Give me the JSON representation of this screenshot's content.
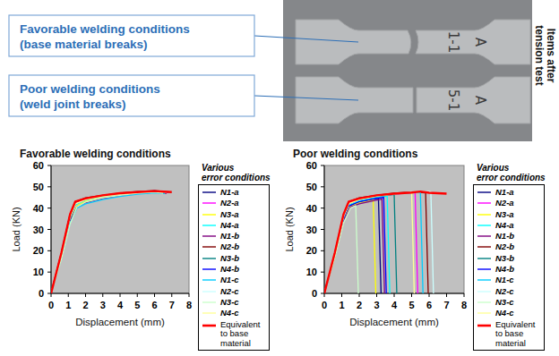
{
  "photo": {
    "callouts": [
      {
        "lines": [
          "Favorable welding conditions",
          "(base material breaks)"
        ]
      },
      {
        "lines": [
          "Poor welding conditions",
          "(weld joint breaks)"
        ]
      }
    ],
    "side_label": [
      "Items after",
      "tension test"
    ],
    "specimens": [
      {
        "marks": [
          "1-1",
          "A"
        ]
      },
      {
        "marks": [
          "5-1",
          "A"
        ]
      }
    ]
  },
  "chart_data": [
    {
      "type": "line",
      "title": "Favorable welding conditions",
      "x_label": "Displacement (mm)",
      "y_label": "Load (KN)",
      "legend_title": [
        "Various",
        "error conditions"
      ],
      "xlim": [
        0,
        8
      ],
      "xticks": [
        0,
        1,
        2,
        3,
        4,
        5,
        6,
        7,
        8
      ],
      "ylim": [
        0,
        60
      ],
      "yticks": [
        0,
        10,
        20,
        30,
        40,
        50,
        60
      ],
      "grid": false,
      "legend": "right",
      "series": [
        {
          "name": "N1-a",
          "color": "#000080",
          "x": [
            0,
            0.6,
            1.1,
            1.4,
            2,
            3,
            4,
            5,
            6,
            6.6
          ],
          "values": [
            0,
            19,
            37,
            42.5,
            44,
            45.5,
            46.5,
            47.3,
            47.8,
            47.2
          ]
        },
        {
          "name": "N2-a",
          "color": "#FF00FF",
          "x": [
            0,
            0.6,
            1.1,
            1.4,
            2,
            3,
            4,
            5,
            6,
            6.8
          ],
          "values": [
            0,
            18,
            36,
            42,
            44.2,
            45.8,
            46.8,
            47.6,
            48,
            47.4
          ]
        },
        {
          "name": "N3-a",
          "color": "#FFFF00",
          "x": [
            0,
            0.6,
            1.1,
            1.5,
            2,
            3,
            4,
            5,
            6,
            6.5
          ],
          "values": [
            0,
            17,
            34,
            41,
            43.5,
            45.2,
            46.3,
            47.2,
            47.6,
            47
          ]
        },
        {
          "name": "N4-a",
          "color": "#00FFFF",
          "x": [
            0,
            0.6,
            1.1,
            1.4,
            2,
            3,
            4,
            5,
            6,
            7
          ],
          "values": [
            0,
            18,
            35,
            41.5,
            43.8,
            45.4,
            46.6,
            47.4,
            47.9,
            47.5
          ]
        },
        {
          "name": "N1-b",
          "color": "#800080",
          "x": [
            0,
            0.6,
            1.1,
            1.5,
            2,
            3,
            4,
            5,
            6,
            6.7
          ],
          "values": [
            0,
            17,
            34,
            40.5,
            42.5,
            44.5,
            45.8,
            46.8,
            47.4,
            47
          ]
        },
        {
          "name": "N2-b",
          "color": "#800000",
          "x": [
            0,
            0.6,
            1.1,
            1.4,
            2,
            3,
            4,
            5,
            6,
            6.9
          ],
          "values": [
            0,
            19,
            37,
            43,
            44.8,
            46,
            47,
            47.8,
            48.2,
            47.6
          ]
        },
        {
          "name": "N3-b",
          "color": "#008080",
          "x": [
            0,
            0.6,
            1.1,
            1.4,
            2,
            3,
            4,
            5,
            6,
            6.4
          ],
          "values": [
            0,
            18,
            35.5,
            42,
            44,
            45.6,
            46.7,
            47.4,
            47.8,
            47.3
          ]
        },
        {
          "name": "N4-b",
          "color": "#0000FF",
          "x": [
            0,
            0.6,
            1.1,
            1.4,
            2,
            3,
            4,
            5,
            6,
            6.8
          ],
          "values": [
            0,
            18.5,
            36,
            42.3,
            44.2,
            45.7,
            46.6,
            47.4,
            48.1,
            47.5
          ]
        },
        {
          "name": "N1-c",
          "color": "#00CCFF",
          "x": [
            0,
            0.6,
            1.1,
            1.5,
            2,
            3,
            4,
            5,
            6,
            6.6
          ],
          "values": [
            0,
            16.5,
            33,
            40,
            42,
            44,
            45.5,
            46.5,
            47.2,
            46.8
          ]
        },
        {
          "name": "N2-c",
          "color": "#CCFFFF",
          "x": [
            0,
            0.6,
            1.1,
            1.4,
            2,
            3,
            4,
            5,
            6,
            6.9
          ],
          "values": [
            0,
            18,
            36,
            42,
            44,
            45.6,
            46.6,
            47.6,
            48,
            47.6
          ]
        },
        {
          "name": "N3-c",
          "color": "#CCFFCC",
          "x": [
            0,
            0.6,
            1.1,
            1.5,
            2,
            3,
            4,
            5,
            6,
            6.5
          ],
          "values": [
            0,
            16,
            32.5,
            40.5,
            42.8,
            44.8,
            46,
            47,
            47.5,
            47
          ]
        },
        {
          "name": "N4-c",
          "color": "#FFFF99",
          "x": [
            0,
            0.6,
            1.1,
            1.4,
            2,
            3,
            4,
            5,
            6,
            6.7
          ],
          "values": [
            0,
            18,
            35.8,
            42,
            44,
            45.5,
            46.5,
            47.3,
            47.9,
            47.4
          ]
        },
        {
          "name": "Equivalent to base material",
          "color": "#FF0000",
          "x": [
            0,
            0.6,
            1.1,
            1.4,
            2,
            3,
            4,
            5,
            6,
            7
          ],
          "values": [
            0,
            19,
            37,
            43,
            44.5,
            46,
            47,
            47.5,
            48,
            47.5
          ]
        }
      ]
    },
    {
      "type": "line",
      "title": "Poor welding conditions",
      "x_label": "Displacement (mm)",
      "y_label": "Load (KN)",
      "legend_title": [
        "Various",
        "error conditions"
      ],
      "xlim": [
        0,
        8
      ],
      "xticks": [
        0,
        1,
        2,
        3,
        4,
        5,
        6,
        7,
        8
      ],
      "ylim": [
        0,
        60
      ],
      "yticks": [
        0,
        10,
        20,
        30,
        40,
        50,
        60
      ],
      "grid": false,
      "legend": "right",
      "series": [
        {
          "name": "N1-a",
          "color": "#000080",
          "x": [
            0,
            0.6,
            1.1,
            1.4,
            2,
            3,
            3.1,
            3.25
          ],
          "values": [
            0,
            18,
            35,
            41,
            43,
            44.5,
            44.6,
            0
          ]
        },
        {
          "name": "N2-a",
          "color": "#FF00FF",
          "x": [
            0,
            0.6,
            1.1,
            1.4,
            2,
            3,
            4,
            5,
            5.2,
            5.35
          ],
          "values": [
            0,
            18.5,
            36,
            42,
            44,
            45.5,
            46.5,
            47.3,
            47.4,
            0
          ]
        },
        {
          "name": "N3-a",
          "color": "#FFFF00",
          "x": [
            0,
            0.6,
            1.1,
            1.4,
            2,
            2.8,
            2.95
          ],
          "values": [
            0,
            17,
            34,
            40.5,
            42.5,
            43.8,
            0
          ]
        },
        {
          "name": "N4-a",
          "color": "#00FFFF",
          "x": [
            0,
            0.6,
            1.1,
            1.4,
            2,
            3,
            3.6,
            3.75
          ],
          "values": [
            0,
            18,
            35.5,
            41.5,
            43.5,
            45,
            45.6,
            0
          ]
        },
        {
          "name": "N1-b",
          "color": "#800080",
          "x": [
            0,
            0.6,
            1.1,
            1.5,
            2,
            3,
            3.3,
            3.45
          ],
          "values": [
            0,
            17,
            34,
            40.5,
            42,
            43.8,
            44.2,
            0
          ]
        },
        {
          "name": "N2-b",
          "color": "#800000",
          "x": [
            0,
            0.6,
            1.1,
            1.4,
            2,
            3,
            4,
            5,
            5.8,
            5.95
          ],
          "values": [
            0,
            19,
            37,
            43,
            44.8,
            46,
            47,
            47.6,
            47.2,
            0
          ]
        },
        {
          "name": "N3-b",
          "color": "#008080",
          "x": [
            0,
            0.6,
            1.1,
            1.4,
            2,
            3,
            4,
            4.15
          ],
          "values": [
            0,
            18,
            35.5,
            42,
            44,
            45.5,
            46.4,
            0
          ]
        },
        {
          "name": "N4-b",
          "color": "#0000FF",
          "x": [
            0,
            0.6,
            1.1,
            1.4,
            2,
            3,
            3.4,
            3.55
          ],
          "values": [
            0,
            18,
            35,
            41,
            43,
            44.6,
            45,
            0
          ]
        },
        {
          "name": "N1-c",
          "color": "#00CCFF",
          "x": [
            0,
            0.6,
            1.1,
            1.4,
            2,
            3,
            4,
            5,
            5.5,
            5.65
          ],
          "values": [
            0,
            18,
            35.5,
            42,
            44,
            45.6,
            46.6,
            47.3,
            47.5,
            0
          ]
        },
        {
          "name": "N2-c",
          "color": "#CCFFFF",
          "x": [
            0,
            0.6,
            1.1,
            1.4,
            2,
            3,
            4,
            5,
            6,
            6.1,
            6.25
          ],
          "values": [
            0,
            18.5,
            36,
            42.2,
            44.2,
            45.8,
            46.7,
            47.5,
            47.8,
            47.6,
            0
          ]
        },
        {
          "name": "N3-c",
          "color": "#CCFFCC",
          "x": [
            0,
            0.6,
            1.1,
            1.5,
            1.8,
            1.95
          ],
          "values": [
            0,
            16.5,
            33,
            40,
            41.2,
            0
          ]
        },
        {
          "name": "N4-c",
          "color": "#FFFF99",
          "x": [
            0,
            0.6,
            1.1,
            1.4,
            2,
            3,
            4,
            5,
            5.15
          ],
          "values": [
            0,
            18,
            36,
            42,
            44,
            45.6,
            46.6,
            47.4,
            0
          ]
        },
        {
          "name": "Equivalent to base material",
          "color": "#FF0000",
          "x": [
            0,
            0.6,
            1.1,
            1.4,
            2,
            3,
            4,
            5,
            5.5,
            6,
            7
          ],
          "values": [
            0,
            19,
            37,
            43,
            44.5,
            46,
            46.8,
            47.3,
            47.8,
            47.2,
            46.8
          ]
        }
      ]
    }
  ]
}
